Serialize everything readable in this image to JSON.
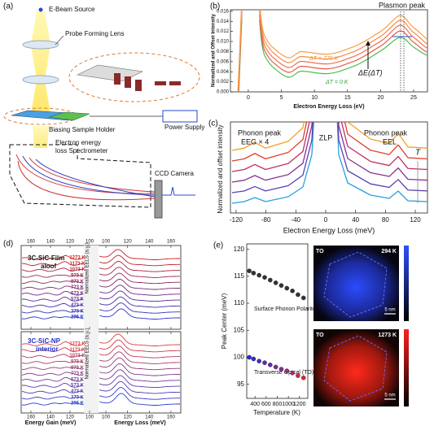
{
  "panel_a": {
    "label": "(a)",
    "e_beam_source": "E-Beam Source",
    "probe_forming_lens": "Probe Forming Lens",
    "biasing_sample_holder": "Biasing Sample Holder",
    "power_supply": "Power Supply",
    "spectrometer_1": "Electron energy",
    "spectrometer_2": "loss Spectrometer",
    "ccd_camera": "CCD Camera"
  },
  "panel_b": {
    "label": "(b)",
    "ylabel": "Normalized and Offset Intensity",
    "xlabel": "Electron Energy Loss (eV)",
    "xlim": [
      -2.7,
      27.1
    ],
    "ylim": [
      0,
      0.0163
    ],
    "xticks": [
      0,
      5,
      10,
      15,
      20,
      25
    ],
    "yticks": [
      {
        "value": 0,
        "label": "0.000"
      },
      {
        "value": 0.002,
        "label": "0.002"
      },
      {
        "value": 0.004,
        "label": "0.004"
      },
      {
        "value": 0.006,
        "label": "0.006"
      },
      {
        "value": 0.008,
        "label": "0.008"
      },
      {
        "value": 0.01,
        "label": "0.010"
      },
      {
        "value": 0.012,
        "label": "0.012"
      },
      {
        "value": 0.014,
        "label": "0.014"
      },
      {
        "value": 0.016,
        "label": "0.016"
      }
    ],
    "plasmon_peak": "Plasmon peak",
    "dt_high": "ΔT = 770 K",
    "de": "ΔE(ΔT)",
    "dt_low": "ΔT = 0 K"
  },
  "panel_c": {
    "label": "(c)",
    "ylabel": "Normalized and offset intensity",
    "xlabel": "Electron Energy Loss (meV)",
    "xlim": [
      -127.6,
      136.3
    ],
    "xticks": [
      -120,
      -80,
      -40,
      0,
      40,
      80,
      120
    ],
    "phonon_left": "Phonon peak",
    "eeg": "EEG × 4",
    "zlp": "ZLP",
    "phonon_right": "Phonon peak",
    "eel": "EEL",
    "t": "T"
  },
  "panel_d": {
    "label": "(d)",
    "gain_xlim": [
      170,
      92.5
    ],
    "loss_xlim": [
      93.2,
      168.3
    ],
    "gain_ticks": [
      160,
      140,
      120,
      100
    ],
    "loss_ticks": [
      100,
      120,
      140,
      160
    ],
    "ylabel": "Normalized EELS (a.u.)",
    "gain_label": "Energy Gain (meV)",
    "loss_label": "Energy Loss (meV)",
    "film_1": "3C-SiC-Film",
    "film_2": "aloof",
    "np_1": "3C-SiC-NP",
    "np_2": "interior",
    "temperatures": [
      "1273 K",
      "1173 K",
      "1073 K",
      "973 K",
      "873 K",
      "773 K",
      "673 K",
      "573 K",
      "473 K",
      "373 K",
      "296 K"
    ]
  },
  "panel_e": {
    "label": "(e)",
    "ylabel": "Peak Center (meV)",
    "xlabel": "Temperature (K)",
    "xlim": [
      250,
      1350
    ],
    "ylim": [
      92.4,
      121
    ],
    "xticks": [
      400,
      600,
      800,
      1000,
      1200
    ],
    "yticks": [
      95,
      100,
      105,
      110,
      115,
      120
    ],
    "x": [
      296,
      373,
      473,
      573,
      673,
      773,
      873,
      973,
      1073,
      1173,
      1273
    ],
    "series": [
      {
        "name": "Surface Phonon Polariton",
        "color": "#333333",
        "values": [
          116,
          115.6,
          115.2,
          114.8,
          114.3,
          113.8,
          113.3,
          112.8,
          112.3,
          111.6,
          111
        ]
      },
      {
        "name": "Transverse Optcal (TO)",
        "colors": [
          "#2a2ad0",
          "#3a2ac8",
          "#4a2ac0",
          "#5a2ab8",
          "#6a2ab0",
          "#7a2aa0",
          "#8a2a90",
          "#a02a80",
          "#b02a70",
          "#c82a50",
          "#d82a30"
        ],
        "values": [
          100,
          99.7,
          99.3,
          99,
          98.6,
          98.2,
          97.8,
          97.5,
          97.1,
          96.6,
          96.2
        ]
      }
    ],
    "map_to_1": "TO",
    "map_temp_1": "294 K",
    "scale_1": "5 nm",
    "map_to_2": "TO",
    "map_temp_2": "1273 K",
    "scale_2": "5 nm"
  }
}
